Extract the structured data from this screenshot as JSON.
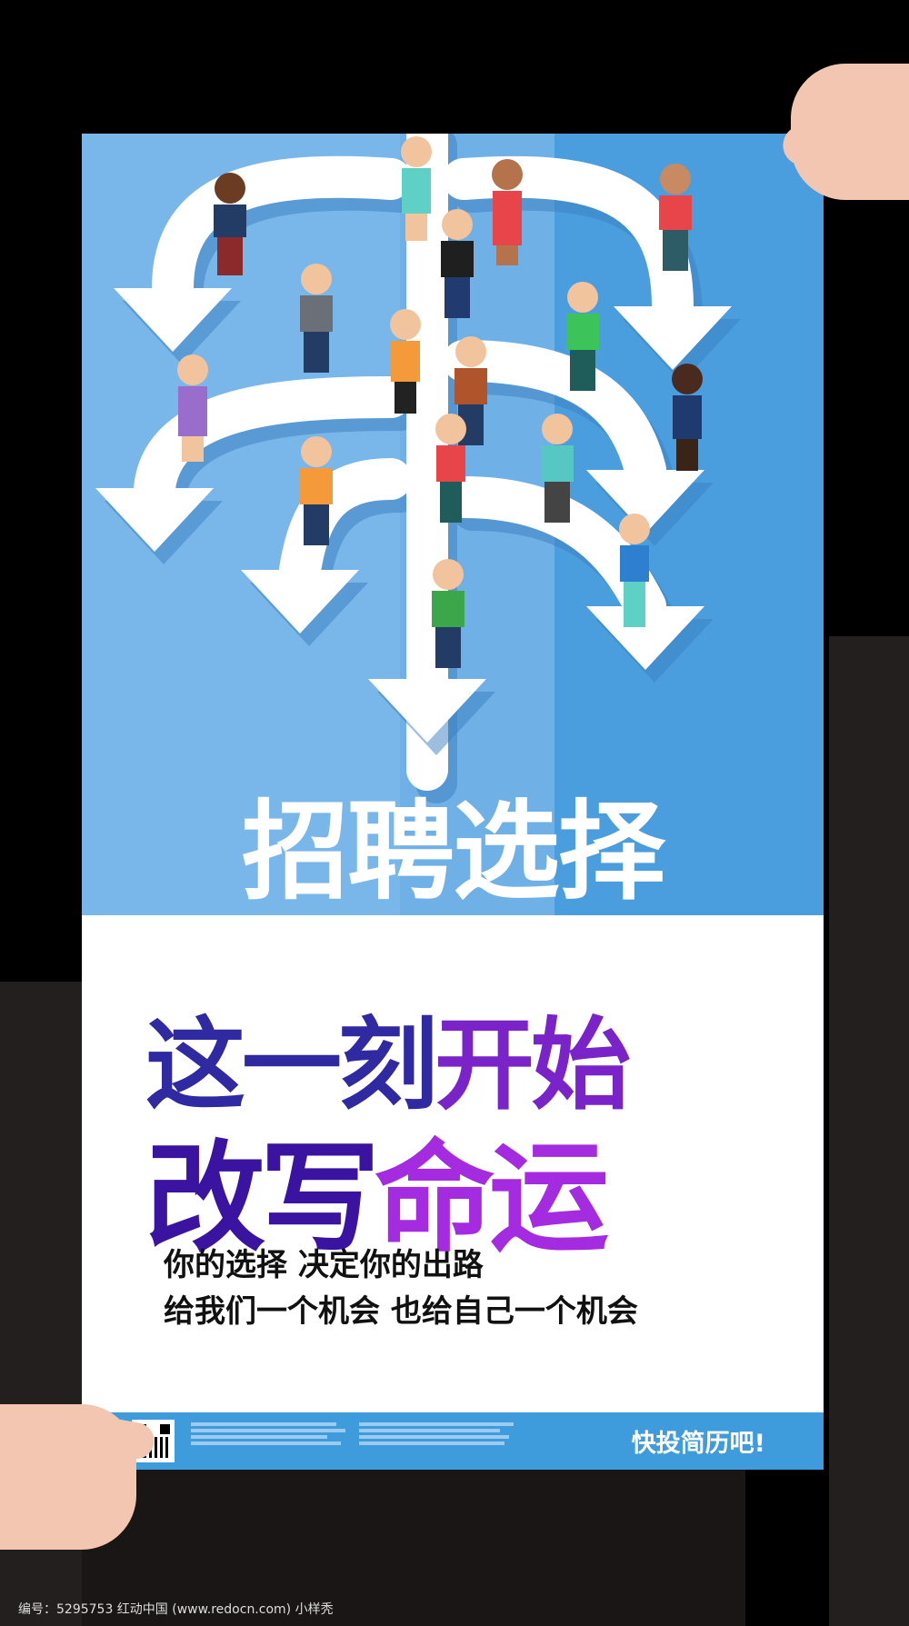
{
  "poster": {
    "title": "招聘选择",
    "headline_1a": "这一刻",
    "headline_1b": "开始",
    "headline_2a": "改写",
    "headline_2b": "命运",
    "subtitle_1": "你的选择 决定你的出路",
    "subtitle_2": "给我们一个机会 也给自己一个机会",
    "cta": "快投简历吧!"
  },
  "colors": {
    "background": "#000000",
    "poster_blue": "#6fb0e6",
    "footer_blue": "#3e9bdc",
    "headline_navy": "#2f2aa2",
    "headline_purple": "#a52be0"
  },
  "caption": "编号：5295753    红动中国 (www.redocn.com)    小样秃"
}
